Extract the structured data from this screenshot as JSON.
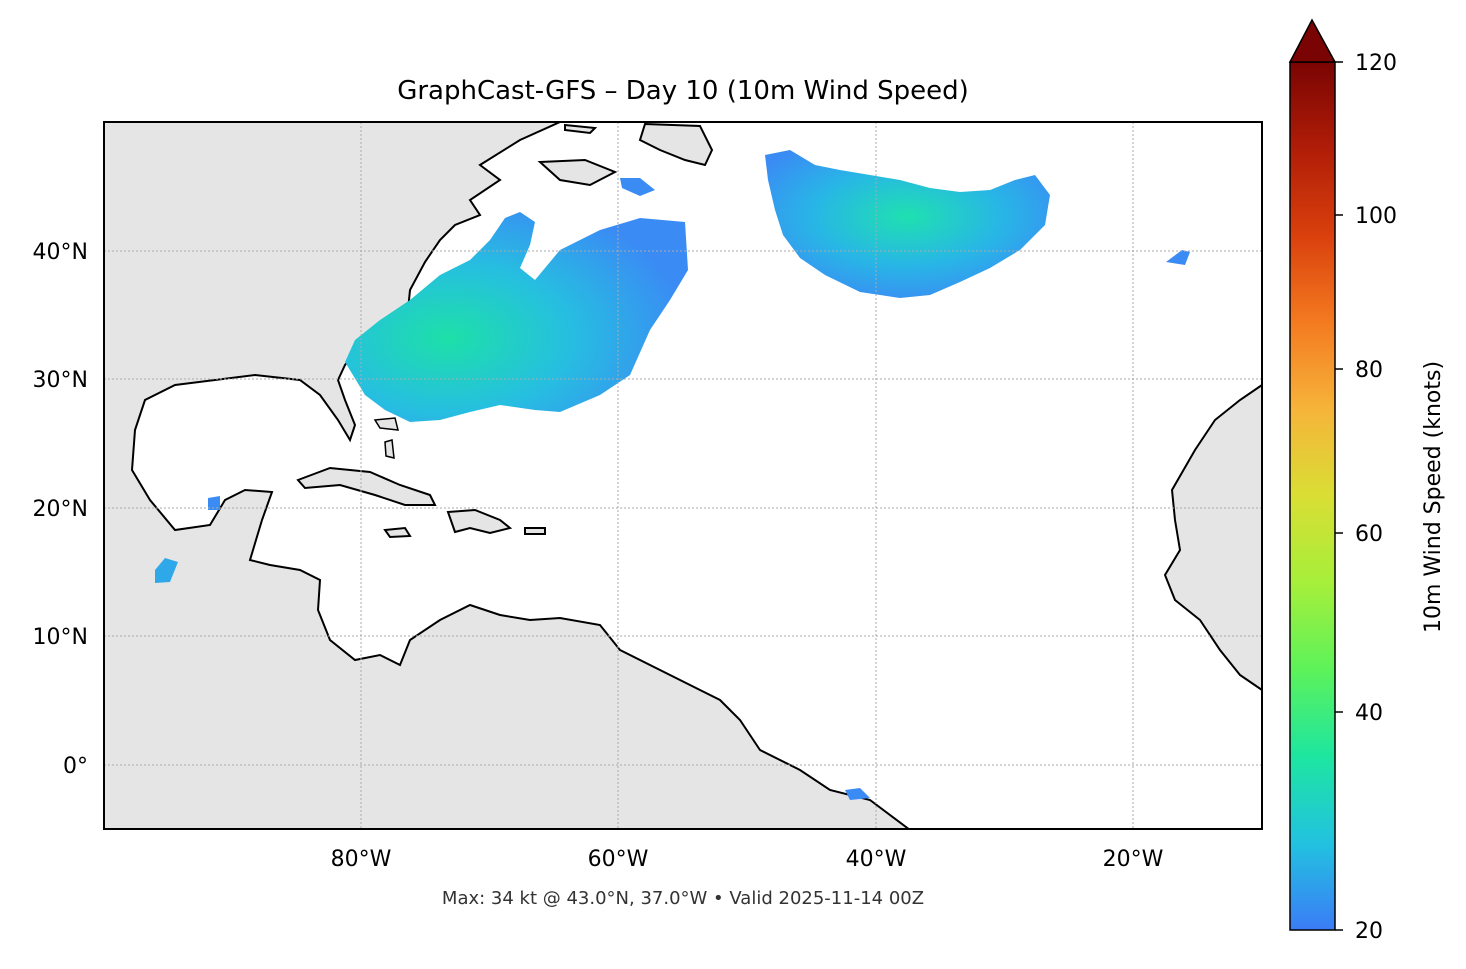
{
  "title": "GraphCast-GFS – Day 10 (10m Wind Speed)",
  "footer": "Max: 34 kt @ 43.0°N, 37.0°W • Valid 2025-11-14 00Z",
  "map": {
    "lon_range": [
      -100,
      -10
    ],
    "lat_range": [
      -5,
      50
    ],
    "x_ticks": [
      "80°W",
      "60°W",
      "40°W",
      "20°W"
    ],
    "y_ticks": [
      "40°N",
      "30°N",
      "20°N",
      "10°N",
      "0°"
    ],
    "grid": true,
    "land_color": "#e5e5e5",
    "ocean_color": "#ffffff"
  },
  "colorbar": {
    "label": "10m Wind Speed (knots)",
    "ticks": [
      "120",
      "100",
      "80",
      "60",
      "40",
      "20"
    ],
    "range": [
      20,
      120
    ],
    "extend": "max",
    "colors": [
      "#3b7cf6",
      "#22c2e0",
      "#1de6a0",
      "#5df25a",
      "#a6ef3a",
      "#d9de34",
      "#f6b43a",
      "#f47a20",
      "#d9400d",
      "#b01d07",
      "#7a0403"
    ]
  },
  "max_wind": {
    "value_kt": 34,
    "lat": 43.0,
    "lon": -37.0
  }
}
